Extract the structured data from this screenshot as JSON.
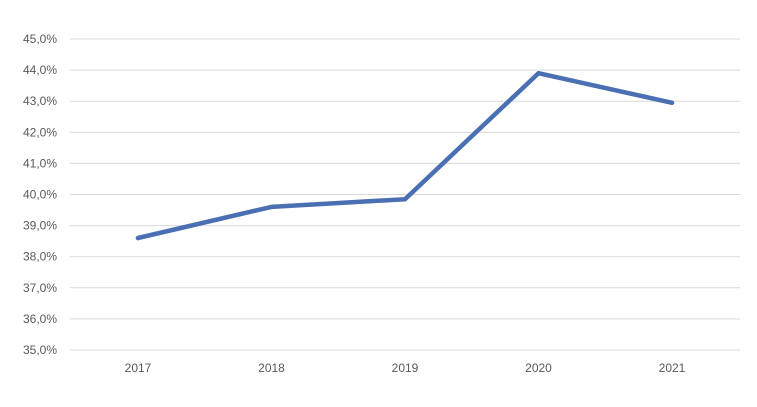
{
  "chart_data": {
    "type": "line",
    "title": "",
    "xlabel": "",
    "ylabel": "",
    "categories": [
      "2017",
      "2018",
      "2019",
      "2020",
      "2021"
    ],
    "series": [
      {
        "values": [
          38.6,
          39.6,
          39.85,
          43.9,
          42.95
        ],
        "color": "#4a6fb3"
      }
    ],
    "ylim": [
      35.0,
      45.0
    ],
    "y_ticks": [
      35.0,
      36.0,
      37.0,
      38.0,
      39.0,
      40.0,
      41.0,
      42.0,
      43.0,
      44.0,
      45.0
    ],
    "y_tick_labels": [
      "35,0%",
      "36,0%",
      "37,0%",
      "38,0%",
      "39,0%",
      "40,0%",
      "41,0%",
      "42,0%",
      "43,0%",
      "44,0%",
      "45,0%"
    ],
    "grid": true,
    "legend": "none",
    "gridline_color": "#d9d9d9",
    "label_color": "#595959"
  }
}
